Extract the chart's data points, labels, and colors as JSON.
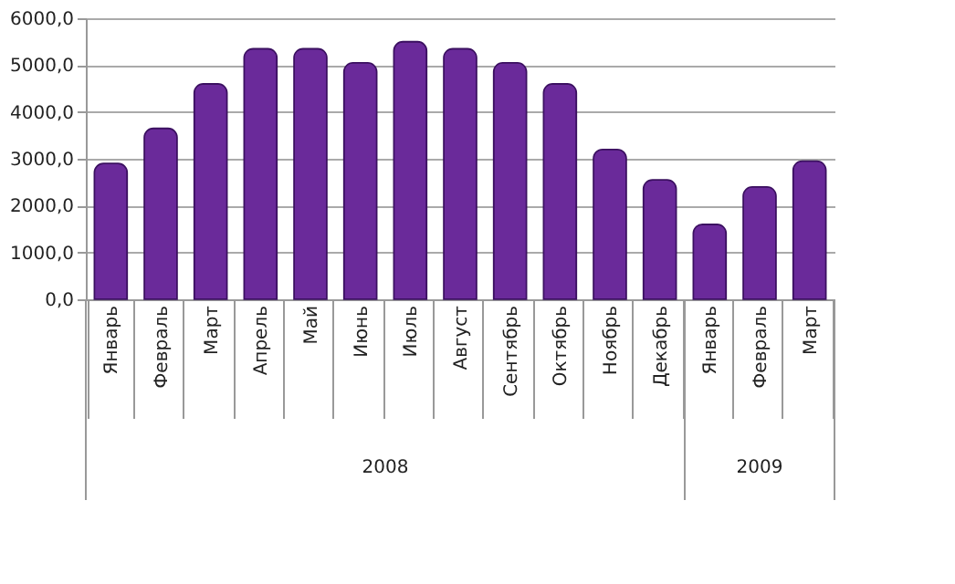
{
  "chart_data": {
    "type": "bar",
    "categories": [
      "Январь",
      "Февраль",
      "Март",
      "Апрель",
      "Май",
      "Июнь",
      "Июль",
      "Август",
      "Сентябрь",
      "Октябрь",
      "Ноябрь",
      "Декабрь",
      "Январь",
      "Февраль",
      "Март"
    ],
    "values": [
      2900,
      3650,
      4600,
      5350,
      5350,
      5050,
      5500,
      5350,
      5050,
      4600,
      3200,
      2550,
      1600,
      2400,
      2950
    ],
    "color": "#6a2a9a",
    "ylim": [
      0,
      6000
    ],
    "yticks": [
      {
        "value": 0,
        "label": "0,0"
      },
      {
        "value": 1000,
        "label": "1000,0"
      },
      {
        "value": 2000,
        "label": "2000,0"
      },
      {
        "value": 3000,
        "label": "3000,0"
      },
      {
        "value": 4000,
        "label": "4000,0"
      },
      {
        "value": 5000,
        "label": "5000,0"
      },
      {
        "value": 6000,
        "label": "6000,0"
      }
    ],
    "grid": "y",
    "annotations": [
      "2008",
      "2009"
    ]
  }
}
